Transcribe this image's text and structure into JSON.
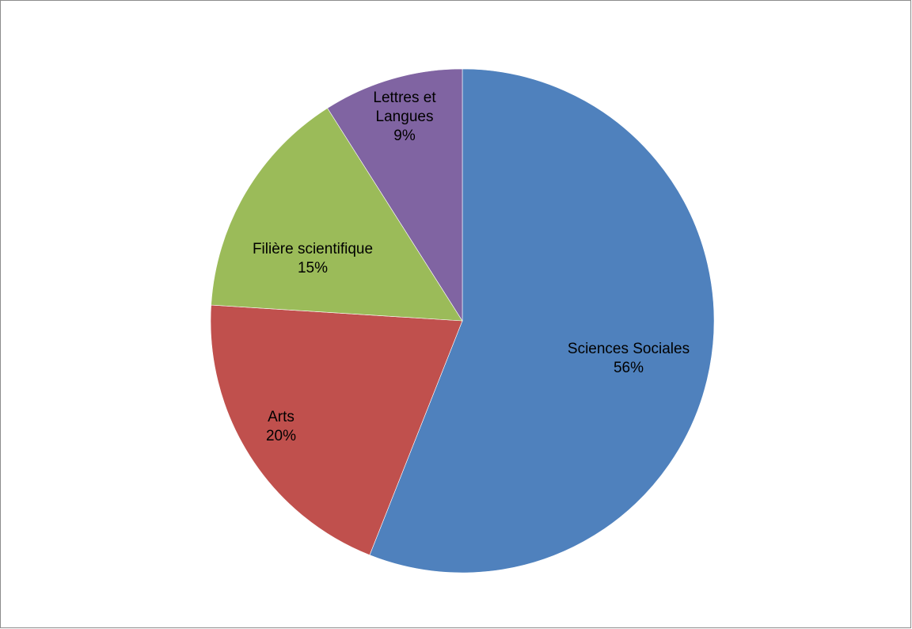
{
  "chart_data": {
    "type": "pie",
    "title": "",
    "start_angle_deg": 0,
    "direction": "clockwise",
    "slices": [
      {
        "name": "Sciences Sociales",
        "value": 56,
        "label": "56%",
        "color": "#4F81BD"
      },
      {
        "name": "Arts",
        "value": 20,
        "label": "20%",
        "color": "#C0504D"
      },
      {
        "name": "Filière scientifique",
        "value": 15,
        "label": "15%",
        "color": "#9BBB59"
      },
      {
        "name": "Lettres et Langues",
        "value": 9,
        "label": "9%",
        "color": "#8064A2"
      }
    ],
    "legend": "none",
    "data_labels": "category name and percentage"
  }
}
